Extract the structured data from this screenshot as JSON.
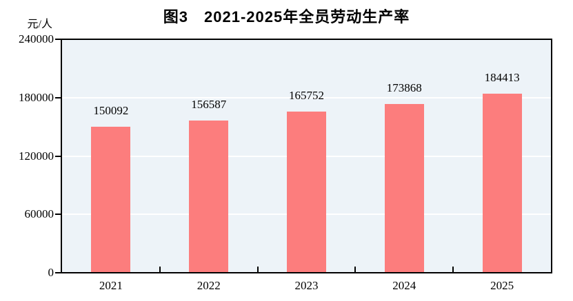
{
  "chart_data": {
    "type": "bar",
    "title": "图3　2021-2025年全员劳动生产率",
    "ylabel": "元/人",
    "xlabel": "",
    "categories": [
      "2021",
      "2022",
      "2023",
      "2024",
      "2025"
    ],
    "values": [
      150092,
      156587,
      165752,
      173868,
      184413
    ],
    "data_labels": [
      "150092",
      "156587",
      "165752",
      "173868",
      "184413"
    ],
    "ylim": [
      0,
      240000
    ],
    "yticks": [
      0,
      60000,
      120000,
      180000,
      240000
    ],
    "ytick_labels": [
      "0",
      "60000",
      "120000",
      "180000",
      "240000"
    ],
    "grid": "horizontal",
    "legend_position": "none",
    "colors": {
      "bar_fill": "#FC7D7D",
      "plot_background": "#EDF3F8",
      "plot_border": "#000000",
      "gridline": "#FFFFFF",
      "text": "#000000",
      "page_background": "#FFFFFF"
    }
  }
}
